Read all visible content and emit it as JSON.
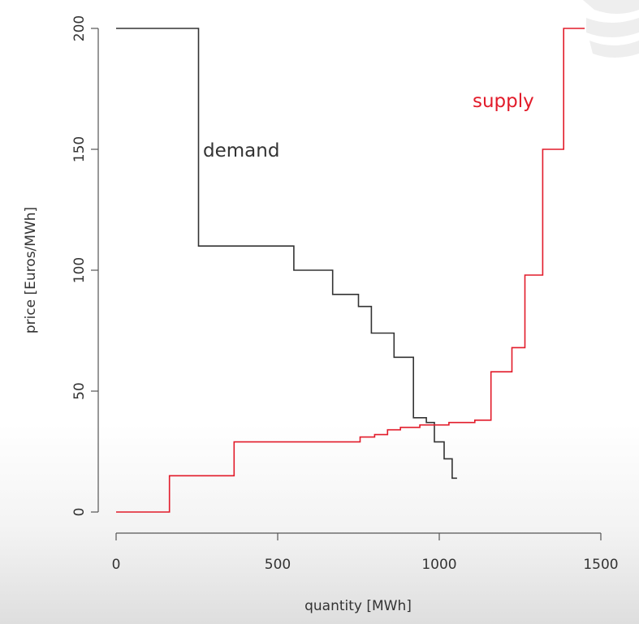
{
  "chart_data": {
    "type": "line",
    "step": true,
    "xlabel": "quantity [MWh]",
    "ylabel": "price [Euros/MWh]",
    "xlim": [
      0,
      1500
    ],
    "ylim": [
      0,
      200
    ],
    "x_ticks": [
      0,
      500,
      1000,
      1500
    ],
    "y_ticks": [
      0,
      50,
      100,
      150,
      200
    ],
    "grid": false,
    "series": [
      {
        "name": "demand",
        "color": "#333333",
        "points": [
          [
            0,
            200
          ],
          [
            255,
            200
          ],
          [
            255,
            110
          ],
          [
            550,
            110
          ],
          [
            550,
            100
          ],
          [
            670,
            100
          ],
          [
            670,
            90
          ],
          [
            750,
            90
          ],
          [
            750,
            85
          ],
          [
            790,
            85
          ],
          [
            790,
            74
          ],
          [
            860,
            74
          ],
          [
            860,
            64
          ],
          [
            920,
            64
          ],
          [
            920,
            39
          ],
          [
            960,
            39
          ],
          [
            960,
            37
          ],
          [
            985,
            37
          ],
          [
            985,
            29
          ],
          [
            1015,
            29
          ],
          [
            1015,
            22
          ],
          [
            1040,
            22
          ],
          [
            1040,
            14
          ],
          [
            1055,
            14
          ]
        ]
      },
      {
        "name": "supply",
        "color": "#e21b2a",
        "points": [
          [
            0,
            0
          ],
          [
            165,
            0
          ],
          [
            165,
            15
          ],
          [
            365,
            15
          ],
          [
            365,
            29
          ],
          [
            755,
            29
          ],
          [
            755,
            31
          ],
          [
            800,
            31
          ],
          [
            800,
            32
          ],
          [
            840,
            32
          ],
          [
            840,
            34
          ],
          [
            880,
            34
          ],
          [
            880,
            35
          ],
          [
            940,
            35
          ],
          [
            940,
            36
          ],
          [
            1030,
            36
          ],
          [
            1030,
            37
          ],
          [
            1110,
            37
          ],
          [
            1110,
            38
          ],
          [
            1160,
            38
          ],
          [
            1160,
            58
          ],
          [
            1225,
            58
          ],
          [
            1225,
            68
          ],
          [
            1265,
            68
          ],
          [
            1265,
            98
          ],
          [
            1320,
            98
          ],
          [
            1320,
            150
          ],
          [
            1385,
            150
          ],
          [
            1385,
            200
          ],
          [
            1450,
            200
          ]
        ]
      }
    ]
  }
}
